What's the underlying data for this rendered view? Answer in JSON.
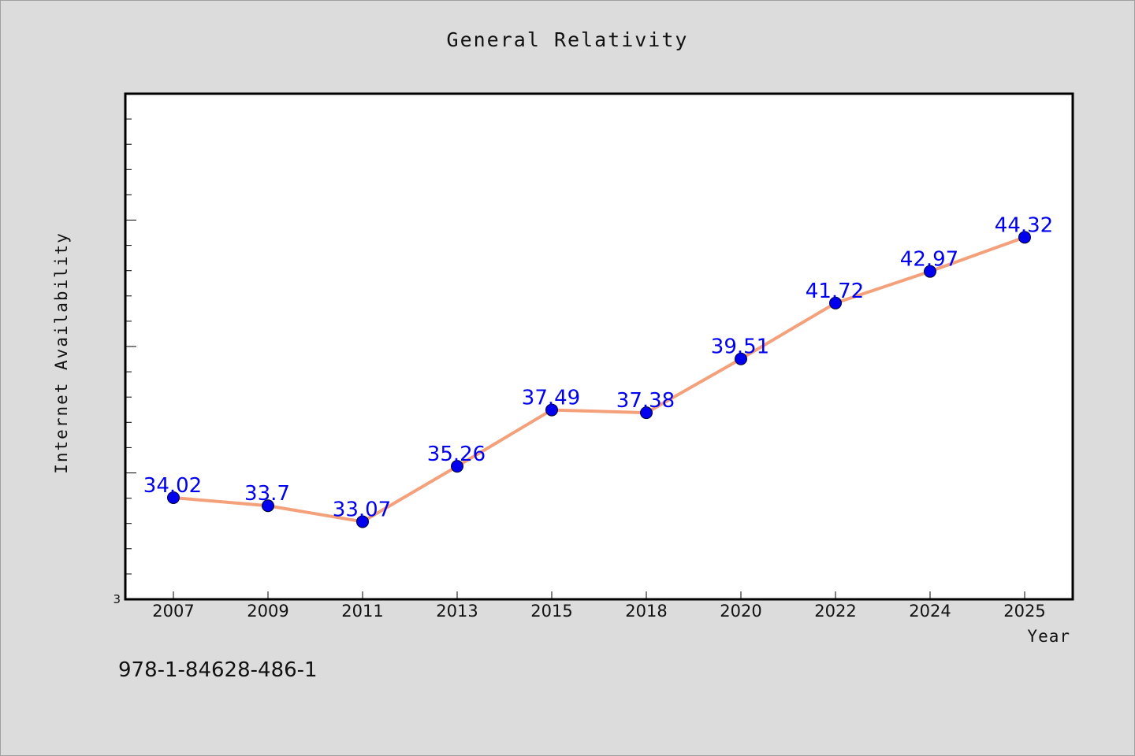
{
  "chart_data": {
    "type": "line",
    "title": "General Relativity",
    "xlabel": "Year",
    "ylabel": "Internet Availability",
    "x": [
      "2007",
      "2009",
      "2011",
      "2013",
      "2015",
      "2018",
      "2020",
      "2022",
      "2024",
      "2025"
    ],
    "series": [
      {
        "values": [
          34.02,
          33.7,
          33.07,
          35.26,
          37.49,
          37.38,
          39.51,
          41.72,
          42.97,
          44.32
        ],
        "data_labels": [
          "34.02",
          "33.7",
          "33.07",
          "35.26",
          "37.49",
          "37.38",
          "39.51",
          "41.72",
          "42.97",
          "44.32"
        ],
        "line_color": "#f4a07a",
        "marker_color": "#0000ee"
      }
    ],
    "ylim": [
      30,
      50
    ],
    "y_tick_labels": [
      "3"
    ],
    "grid": false,
    "legend": "none"
  },
  "footnote": "978-1-84628-486-1"
}
